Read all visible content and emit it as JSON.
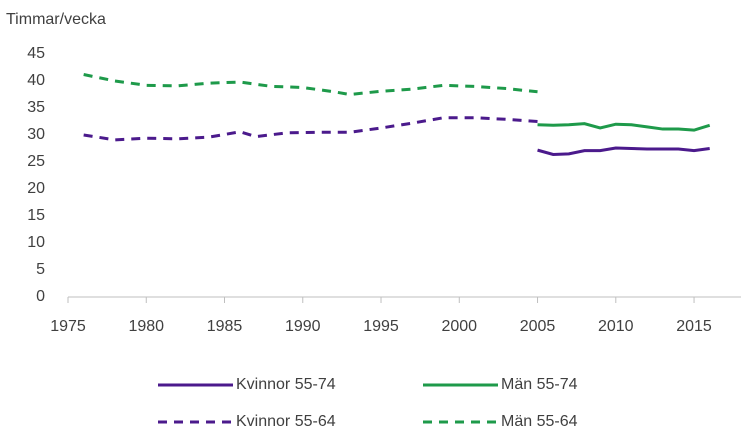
{
  "chart_data": {
    "type": "line",
    "y_label": "Timmar/vecka",
    "xlim": [
      1975,
      2018
    ],
    "xticks": [
      1975,
      1980,
      1985,
      1990,
      1995,
      2000,
      2005,
      2010,
      2015
    ],
    "ylim": [
      0,
      45
    ],
    "yticks": [
      0,
      5,
      10,
      15,
      20,
      25,
      30,
      35,
      40,
      45
    ],
    "series": [
      {
        "name": "Kvinnor 55-74",
        "color": "#4b1a8c",
        "line_style": "solid",
        "x": [
          2005,
          2006,
          2007,
          2008,
          2009,
          2010,
          2011,
          2012,
          2013,
          2014,
          2015,
          2016
        ],
        "values": [
          27.2,
          26.4,
          26.5,
          27.1,
          27.1,
          27.6,
          27.5,
          27.4,
          27.4,
          27.4,
          27.1,
          27.5
        ]
      },
      {
        "name": "Män 55-74",
        "color": "#1e9a4a",
        "line_style": "solid",
        "x": [
          2005,
          2006,
          2007,
          2008,
          2009,
          2010,
          2011,
          2012,
          2013,
          2014,
          2015,
          2016
        ],
        "values": [
          31.9,
          31.8,
          31.9,
          32.1,
          31.3,
          32.0,
          31.9,
          31.5,
          31.1,
          31.1,
          30.9,
          31.8
        ]
      },
      {
        "name": "Kvinnor 55-64",
        "color": "#4b1a8c",
        "line_style": "dashed",
        "x": [
          1976,
          1978,
          1980,
          1982,
          1984,
          1986,
          1987,
          1989,
          1991,
          1993,
          1995,
          1997,
          1999,
          2001,
          2003,
          2005
        ],
        "values": [
          30.0,
          29.1,
          29.4,
          29.3,
          29.6,
          30.6,
          29.7,
          30.4,
          30.5,
          30.5,
          31.3,
          32.2,
          33.2,
          33.2,
          32.9,
          32.5
        ]
      },
      {
        "name": "Män 55-64",
        "color": "#1e9a4a",
        "line_style": "dashed",
        "x": [
          1976,
          1978,
          1980,
          1982,
          1984,
          1986,
          1988,
          1990,
          1992,
          1993,
          1995,
          1997,
          1999,
          2001,
          2003,
          2005
        ],
        "values": [
          41.2,
          40.0,
          39.2,
          39.1,
          39.6,
          39.8,
          39.0,
          38.8,
          38.0,
          37.5,
          38.1,
          38.5,
          39.2,
          39.0,
          38.6,
          38.0
        ]
      }
    ]
  }
}
